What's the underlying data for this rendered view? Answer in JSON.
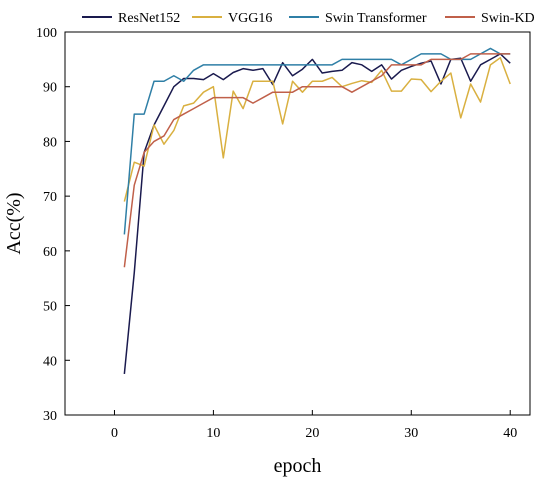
{
  "chart_data": {
    "type": "line",
    "xlabel": "epoch",
    "ylabel": "Acc(%)",
    "xlim": [
      -5,
      42
    ],
    "ylim": [
      30,
      100
    ],
    "xticks": [
      0,
      10,
      20,
      30,
      40
    ],
    "yticks": [
      30,
      40,
      50,
      60,
      70,
      80,
      90,
      100
    ],
    "grid": false,
    "legend_position": "top",
    "x": [
      1,
      2,
      3,
      4,
      5,
      6,
      7,
      8,
      9,
      10,
      11,
      12,
      13,
      14,
      15,
      16,
      17,
      18,
      19,
      20,
      21,
      22,
      23,
      24,
      25,
      26,
      27,
      28,
      29,
      30,
      31,
      32,
      33,
      34,
      35,
      36,
      37,
      38,
      39,
      40
    ],
    "series": [
      {
        "name": "ResNet152",
        "color": "#1a1a4e",
        "values": [
          37.5,
          56,
          78,
          83,
          86.5,
          90,
          91.5,
          91.5,
          91.3,
          92.4,
          91.3,
          92.6,
          93.3,
          93,
          93.3,
          90.4,
          94.4,
          92,
          93.2,
          95,
          92.5,
          92.8,
          93,
          94.4,
          94,
          92.8,
          94,
          91.4,
          93,
          93.7,
          94.3,
          94.7,
          90.5,
          95,
          95.2,
          91,
          94,
          95,
          96,
          94.3
        ]
      },
      {
        "name": "VGG16",
        "color": "#d9b040",
        "values": [
          69,
          76.2,
          75.5,
          83,
          79.5,
          82,
          86.5,
          87,
          89,
          90,
          77,
          89.2,
          86,
          91,
          91,
          91,
          83.2,
          91,
          89,
          91,
          91,
          91.7,
          90,
          90.6,
          91.1,
          90.8,
          93,
          89.2,
          89.2,
          91.4,
          91.3,
          89.1,
          91,
          92.5,
          84.3,
          90.5,
          87.2,
          94,
          95.3,
          90.5
        ]
      },
      {
        "name": "Swin Transformer",
        "color": "#2f7fa6",
        "values": [
          63,
          85,
          85,
          91,
          91,
          92,
          91,
          93,
          94,
          94,
          94,
          94,
          94,
          94,
          94,
          94,
          94,
          94,
          94,
          94,
          94,
          94,
          95,
          95,
          95,
          95,
          95,
          95,
          94,
          95,
          96,
          96,
          96,
          95,
          95,
          95,
          96,
          97,
          96,
          96
        ]
      },
      {
        "name": "Swin-KD",
        "color": "#c0604a",
        "values": [
          57,
          72,
          78,
          80,
          81,
          84,
          85,
          86,
          87,
          88,
          88,
          88,
          88,
          87,
          88,
          89,
          89,
          89,
          90,
          90,
          90,
          90,
          90,
          89,
          90,
          91,
          92,
          94,
          94,
          94,
          94,
          95,
          95,
          95,
          95,
          96,
          96,
          96,
          96,
          96
        ]
      }
    ]
  }
}
